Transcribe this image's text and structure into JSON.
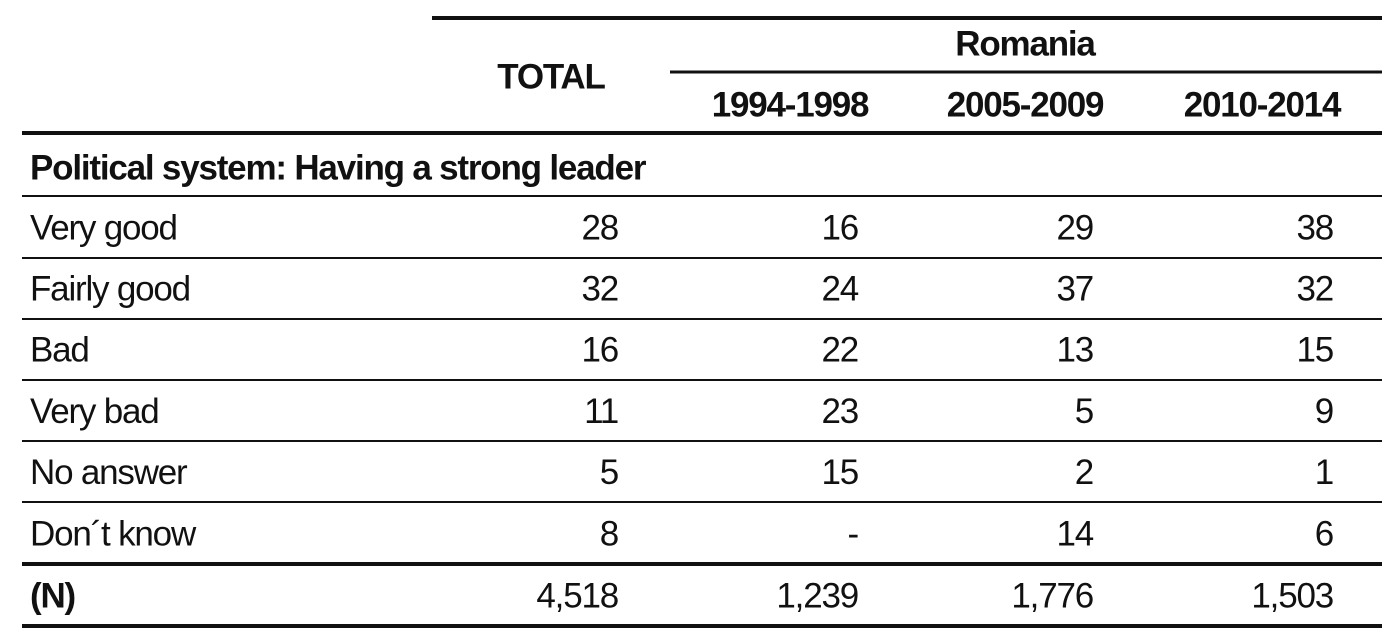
{
  "header": {
    "total": "TOTAL",
    "group": "Romania",
    "periods": [
      "1994-1998",
      "2005-2009",
      "2010-2014"
    ]
  },
  "table": {
    "section": "Political system: Having a strong leader",
    "rows": [
      [
        "Very good",
        28,
        16,
        29,
        38
      ],
      [
        "Fairly good",
        32,
        24,
        37,
        32
      ],
      [
        "Bad",
        16,
        22,
        13,
        15
      ],
      [
        "Very bad",
        11,
        23,
        5,
        9
      ],
      [
        "No answer",
        5,
        15,
        2,
        1
      ],
      [
        "Don´t know",
        8,
        "-",
        14,
        6
      ]
    ],
    "footer": [
      "(N)",
      "4,518",
      "1,239",
      "1,776",
      "1,503"
    ]
  }
}
